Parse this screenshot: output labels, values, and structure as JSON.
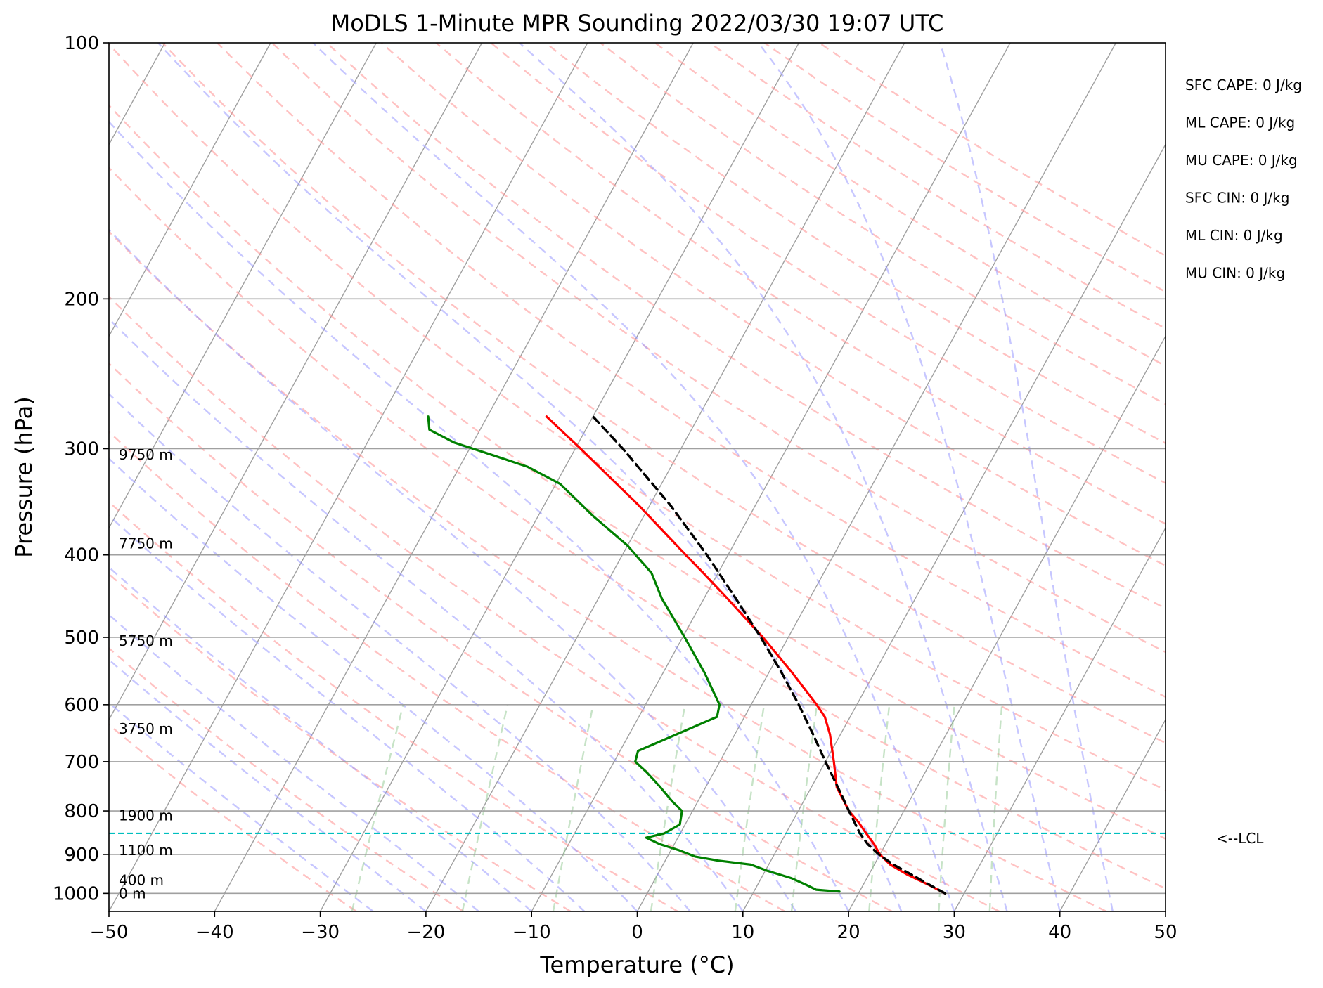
{
  "chart_data": {
    "type": "line",
    "title": "MoDLS 1-Minute MPR Sounding 2022/03/30 19:07 UTC",
    "xlabel": "Temperature (°C)",
    "ylabel": "Pressure (hPa)",
    "xlim": [
      -50,
      50
    ],
    "ylim": [
      1050,
      100
    ],
    "y_scale": "log",
    "x_ticks": [
      -50,
      -40,
      -30,
      -20,
      -10,
      0,
      10,
      20,
      30,
      40,
      50
    ],
    "x_tick_labels": [
      "−50",
      "−40",
      "−30",
      "−20",
      "−10",
      "0",
      "10",
      "20",
      "30",
      "40",
      "50"
    ],
    "y_ticks": [
      100,
      200,
      300,
      400,
      500,
      600,
      700,
      800,
      900,
      1000
    ],
    "y_tick_labels": [
      "100",
      "200",
      "300",
      "400",
      "500",
      "600",
      "700",
      "800",
      "900",
      "1000"
    ],
    "grid": true,
    "skew": "skew-T log-P",
    "colors": {
      "temperature": "#ff0000",
      "dewpoint": "#008000",
      "parcel": "#000000",
      "lcl": "#00bfbf",
      "dry_adiabats": "#ff9999",
      "moist_adiabats": "#9999ff",
      "mixing_ratio": "#99cc99",
      "isotherms": "#a0a0a0"
    },
    "series": [
      {
        "key": "temperature",
        "points": [
          [
            1000,
            28.2
          ],
          [
            975,
            26.0
          ],
          [
            950,
            23.6
          ],
          [
            925,
            21.5
          ],
          [
            900,
            20.0
          ],
          [
            875,
            18.9
          ],
          [
            850,
            17.6
          ],
          [
            825,
            16.3
          ],
          [
            800,
            14.8
          ],
          [
            750,
            12.4
          ],
          [
            700,
            10.8
          ],
          [
            650,
            9.0
          ],
          [
            620,
            7.6
          ],
          [
            600,
            6.2
          ],
          [
            550,
            2.2
          ],
          [
            500,
            -2.4
          ],
          [
            450,
            -7.8
          ],
          [
            420,
            -11.4
          ],
          [
            400,
            -14.0
          ],
          [
            350,
            -21.0
          ],
          [
            300,
            -29.5
          ],
          [
            275,
            -34.4
          ]
        ]
      },
      {
        "key": "dewpoint",
        "points": [
          [
            995,
            18.1
          ],
          [
            990,
            15.8
          ],
          [
            975,
            14.4
          ],
          [
            960,
            12.9
          ],
          [
            940,
            10.1
          ],
          [
            925,
            8.3
          ],
          [
            915,
            5.0
          ],
          [
            905,
            2.6
          ],
          [
            890,
            0.8
          ],
          [
            875,
            -1.4
          ],
          [
            860,
            -3.0
          ],
          [
            850,
            -1.5
          ],
          [
            830,
            -0.5
          ],
          [
            800,
            -1.0
          ],
          [
            780,
            -2.4
          ],
          [
            750,
            -4.3
          ],
          [
            720,
            -6.4
          ],
          [
            700,
            -8.0
          ],
          [
            680,
            -8.3
          ],
          [
            650,
            -5.5
          ],
          [
            620,
            -2.6
          ],
          [
            600,
            -3.0
          ],
          [
            550,
            -6.1
          ],
          [
            500,
            -9.8
          ],
          [
            450,
            -14.0
          ],
          [
            420,
            -16.3
          ],
          [
            390,
            -20.0
          ],
          [
            360,
            -24.8
          ],
          [
            330,
            -29.6
          ],
          [
            315,
            -33.6
          ],
          [
            305,
            -37.6
          ],
          [
            295,
            -41.8
          ],
          [
            285,
            -44.8
          ],
          [
            275,
            -45.6
          ]
        ]
      },
      {
        "key": "parcel",
        "points": [
          [
            1000,
            28.2
          ],
          [
            975,
            26.1
          ],
          [
            950,
            24.0
          ],
          [
            925,
            21.8
          ],
          [
            900,
            19.9
          ],
          [
            875,
            18.3
          ],
          [
            850,
            17.0
          ],
          [
            800,
            14.8
          ],
          [
            750,
            12.5
          ],
          [
            700,
            10.0
          ],
          [
            650,
            7.4
          ],
          [
            600,
            4.5
          ],
          [
            550,
            1.2
          ],
          [
            500,
            -2.6
          ],
          [
            450,
            -7.0
          ],
          [
            400,
            -12.0
          ],
          [
            350,
            -18.0
          ],
          [
            300,
            -25.5
          ],
          [
            275,
            -30.0
          ]
        ]
      }
    ],
    "lcl_pressure": 850,
    "lcl_label": "<--LCL",
    "height_labels": [
      {
        "p": 1000,
        "text": "0 m"
      },
      {
        "p": 965,
        "text": "400 m"
      },
      {
        "p": 890,
        "text": "1100 m"
      },
      {
        "p": 810,
        "text": "1900 m"
      },
      {
        "p": 640,
        "text": "3750 m"
      },
      {
        "p": 505,
        "text": "5750 m"
      },
      {
        "p": 388,
        "text": "7750 m"
      },
      {
        "p": 305,
        "text": "9750 m"
      }
    ],
    "indices": [
      "SFC CAPE: 0 J/kg",
      "ML CAPE: 0 J/kg",
      "MU CAPE: 0 J/kg",
      "SFC CIN: 0 J/kg",
      "ML CIN: 0 J/kg",
      "MU CIN: 0 J/kg"
    ]
  }
}
